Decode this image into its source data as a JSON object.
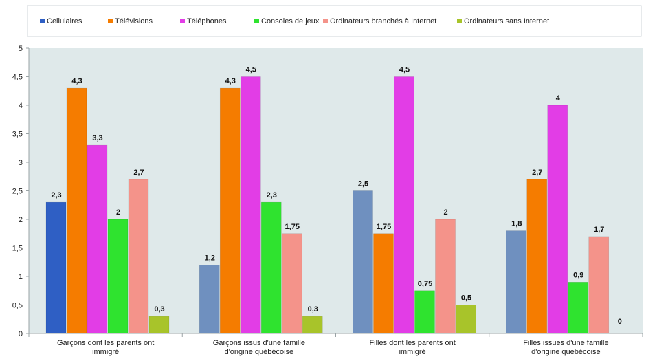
{
  "chart_data": {
    "type": "bar",
    "categories": [
      [
        "Garçons dont les parents ont",
        "immigré"
      ],
      [
        "Garçons issus d'une famille",
        "d'origine québécoise"
      ],
      [
        "Filles dont les parents ont",
        "immigré"
      ],
      [
        "Filles issues d'une famille",
        "d'origine québécoise"
      ]
    ],
    "series": [
      {
        "name": "Cellulaires",
        "values": [
          2.3,
          1.2,
          2.5,
          1.8
        ],
        "labels": [
          "2,3",
          "1,2",
          "2,5",
          "1,8"
        ],
        "colors": [
          "#2f5fc4",
          "#6f90bf",
          "#6f90bf",
          "#6f90bf"
        ]
      },
      {
        "name": "Télévisions",
        "values": [
          4.3,
          4.3,
          1.75,
          2.7
        ],
        "labels": [
          "4,3",
          "4,3",
          "1,75",
          "2,7"
        ],
        "colors": [
          "#f57c00",
          "#f57c00",
          "#f57c00",
          "#f57c00"
        ]
      },
      {
        "name": "Téléphones",
        "values": [
          3.3,
          4.5,
          4.5,
          4.0
        ],
        "labels": [
          "3,3",
          "4,5",
          "4,5",
          "4"
        ],
        "colors": [
          "#e23de6",
          "#e23de6",
          "#e23de6",
          "#e23de6"
        ]
      },
      {
        "name": "Consoles de jeux",
        "values": [
          2.0,
          2.3,
          0.75,
          0.9
        ],
        "labels": [
          "2",
          "2,3",
          "0,75",
          "0,9"
        ],
        "colors": [
          "#2fe32f",
          "#2fe32f",
          "#2fe32f",
          "#2fe32f"
        ]
      },
      {
        "name": "Ordinateurs branchés à Internet",
        "values": [
          2.7,
          1.75,
          2.0,
          1.7
        ],
        "labels": [
          "2,7",
          "1,75",
          "2",
          "1,7"
        ],
        "colors": [
          "#f4938a",
          "#f4938a",
          "#f4938a",
          "#f4938a"
        ]
      },
      {
        "name": "Ordinateurs sans Internet",
        "values": [
          0.3,
          0.3,
          0.5,
          0.0
        ],
        "labels": [
          "0,3",
          "0,3",
          "0,5",
          "0"
        ],
        "colors": [
          "#a8c42a",
          "#a8c42a",
          "#a8c42a",
          "#a8c42a"
        ]
      }
    ],
    "legend_colors": [
      "#2f5fc4",
      "#f57c00",
      "#e23de6",
      "#2fe32f",
      "#f4938a",
      "#a8c42a"
    ],
    "yticks": [
      "0",
      "0,5",
      "1",
      "1,5",
      "2",
      "2,5",
      "3",
      "3,5",
      "4",
      "4,5",
      "5"
    ],
    "ylim": [
      0,
      5
    ],
    "legend_position": "top",
    "grid": false,
    "plot_background": "#dfe9ea",
    "title": "",
    "xlabel": "",
    "ylabel": ""
  }
}
